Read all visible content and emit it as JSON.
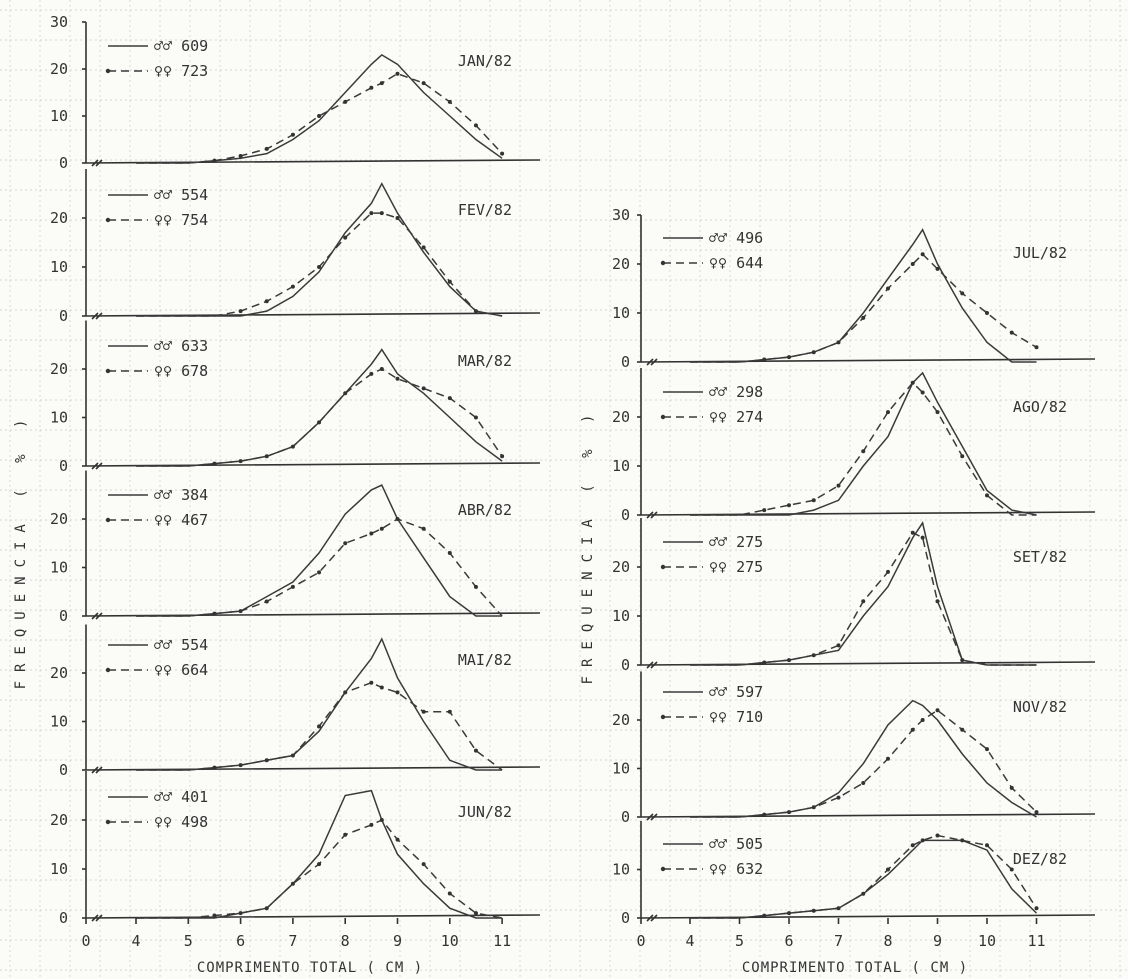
{
  "y_axis_label": "FREQUENCIA ( % )",
  "x_axis_label": "COMPRIMENTO TOTAL ( CM )",
  "chart_data": [
    {
      "type": "line",
      "title": "JAN/82",
      "x": [
        4,
        5,
        5.5,
        6,
        6.5,
        7,
        7.5,
        8,
        8.5,
        8.7,
        9,
        9.5,
        10,
        10.5,
        11
      ],
      "series": [
        {
          "name": "♂♂ 609",
          "y": [
            0,
            0,
            0.5,
            1,
            2,
            5,
            9,
            15,
            21,
            23,
            21,
            15,
            10,
            5,
            1
          ]
        },
        {
          "name": "♀♀ 723",
          "y": [
            0,
            0,
            0.5,
            1.5,
            3,
            6,
            10,
            13,
            16,
            17,
            19,
            17,
            13,
            8,
            2
          ]
        }
      ],
      "ylim": [
        0,
        30
      ],
      "yticks": [
        0,
        10,
        20,
        30
      ],
      "xlim": [
        0,
        12
      ]
    },
    {
      "type": "line",
      "title": "FEV/82",
      "x": [
        4,
        5,
        5.5,
        6,
        6.5,
        7,
        7.5,
        8,
        8.5,
        8.7,
        9,
        9.5,
        10,
        10.5,
        11
      ],
      "series": [
        {
          "name": "♂♂ 554",
          "y": [
            0,
            0,
            0,
            0,
            1,
            4,
            9,
            17,
            23,
            27,
            21,
            13,
            6,
            1,
            0
          ]
        },
        {
          "name": "♀♀ 754",
          "y": [
            0,
            0,
            0,
            1,
            3,
            6,
            10,
            16,
            21,
            21,
            20,
            14,
            7,
            1,
            0
          ]
        }
      ],
      "ylim": [
        0,
        30
      ],
      "yticks": [
        0,
        10,
        20
      ],
      "xlim": [
        0,
        12
      ]
    },
    {
      "type": "line",
      "title": "MAR/82",
      "x": [
        4,
        5,
        5.5,
        6,
        6.5,
        7,
        7.5,
        8,
        8.5,
        8.7,
        9,
        9.5,
        10,
        10.5,
        11
      ],
      "series": [
        {
          "name": "♂♂ 633",
          "y": [
            0,
            0,
            0.5,
            1,
            2,
            4,
            9,
            15,
            21,
            24,
            19,
            15,
            10,
            5,
            1
          ]
        },
        {
          "name": "♀♀ 678",
          "y": [
            0,
            0,
            0.5,
            1,
            2,
            4,
            9,
            15,
            19,
            20,
            18,
            16,
            14,
            10,
            2
          ]
        }
      ],
      "ylim": [
        0,
        30
      ],
      "yticks": [
        0,
        10,
        20
      ],
      "xlim": [
        0,
        12
      ]
    },
    {
      "type": "line",
      "title": "ABR/82",
      "x": [
        4,
        5,
        5.5,
        6,
        6.5,
        7,
        7.5,
        8,
        8.5,
        8.7,
        9,
        9.5,
        10,
        10.5,
        11
      ],
      "series": [
        {
          "name": "♂♂ 384",
          "y": [
            0,
            0,
            0.5,
            1,
            4,
            7,
            13,
            21,
            26,
            27,
            20,
            12,
            4,
            0,
            0
          ]
        },
        {
          "name": "♀♀ 467",
          "y": [
            0,
            0,
            0.5,
            1,
            3,
            6,
            9,
            15,
            17,
            18,
            20,
            18,
            13,
            6,
            0
          ]
        }
      ],
      "ylim": [
        0,
        30
      ],
      "yticks": [
        0,
        10,
        20
      ],
      "xlim": [
        0,
        12
      ]
    },
    {
      "type": "line",
      "title": "MAI/82",
      "x": [
        4,
        5,
        5.5,
        6,
        6.5,
        7,
        7.5,
        8,
        8.5,
        8.7,
        9,
        9.5,
        10,
        10.5,
        11
      ],
      "series": [
        {
          "name": "♂♂ 554",
          "y": [
            0,
            0,
            0.5,
            1,
            2,
            3,
            8,
            16,
            23,
            27,
            19,
            10,
            2,
            0,
            0
          ]
        },
        {
          "name": "♀♀ 664",
          "y": [
            0,
            0,
            0.5,
            1,
            2,
            3,
            9,
            16,
            18,
            17,
            16,
            12,
            12,
            4,
            0
          ]
        }
      ],
      "ylim": [
        0,
        30
      ],
      "yticks": [
        0,
        10,
        20
      ],
      "xlim": [
        0,
        12
      ]
    },
    {
      "type": "line",
      "title": "JUN/82",
      "x": [
        4,
        5,
        5.5,
        6,
        6.5,
        7,
        7.5,
        8,
        8.5,
        8.7,
        9,
        9.5,
        10,
        10.5,
        11
      ],
      "series": [
        {
          "name": "♂♂ 401",
          "y": [
            0,
            0,
            0,
            1,
            2,
            7,
            13,
            25,
            26,
            20,
            13,
            7,
            2,
            0,
            0
          ]
        },
        {
          "name": "♀♀ 498",
          "y": [
            0,
            0,
            0.5,
            1,
            2,
            7,
            11,
            17,
            19,
            20,
            16,
            11,
            5,
            1,
            0
          ]
        }
      ],
      "ylim": [
        0,
        30
      ],
      "yticks": [
        0,
        10,
        20
      ],
      "xlim": [
        0,
        12
      ]
    },
    {
      "type": "line",
      "title": "JUL/82",
      "x": [
        4,
        5,
        5.5,
        6,
        6.5,
        7,
        7.5,
        8,
        8.5,
        8.7,
        9,
        9.5,
        10,
        10.5,
        11
      ],
      "series": [
        {
          "name": "♂♂ 496",
          "y": [
            0,
            0,
            0.5,
            1,
            2,
            4,
            10,
            17,
            24,
            27,
            20,
            11,
            4,
            0,
            0
          ]
        },
        {
          "name": "♀♀ 644",
          "y": [
            0,
            0,
            0.5,
            1,
            2,
            4,
            9,
            15,
            20,
            22,
            19,
            14,
            10,
            6,
            3
          ]
        }
      ],
      "ylim": [
        0,
        30
      ],
      "yticks": [
        0,
        10,
        20,
        30
      ],
      "xlim": [
        0,
        12
      ]
    },
    {
      "type": "line",
      "title": "AGO/82",
      "x": [
        4,
        5,
        5.5,
        6,
        6.5,
        7,
        7.5,
        8,
        8.5,
        8.7,
        9,
        9.5,
        10,
        10.5,
        11
      ],
      "series": [
        {
          "name": "♂♂ 298",
          "y": [
            0,
            0,
            0,
            0,
            1,
            3,
            10,
            16,
            27,
            29,
            23,
            14,
            5,
            1,
            0
          ]
        },
        {
          "name": "♀♀ 274",
          "y": [
            0,
            0,
            1,
            2,
            3,
            6,
            13,
            21,
            27,
            25,
            21,
            12,
            4,
            0,
            0
          ]
        }
      ],
      "ylim": [
        0,
        30
      ],
      "yticks": [
        0,
        10,
        20
      ],
      "xlim": [
        0,
        12
      ]
    },
    {
      "type": "line",
      "title": "SET/82",
      "x": [
        4,
        5,
        5.5,
        6,
        6.5,
        7,
        7.5,
        8,
        8.5,
        8.7,
        9,
        9.5,
        10,
        10.5,
        11
      ],
      "series": [
        {
          "name": "♂♂ 275",
          "y": [
            0,
            0,
            0.5,
            1,
            2,
            3,
            10,
            16,
            26,
            29,
            16,
            1,
            0,
            0,
            0
          ]
        },
        {
          "name": "♀♀ 275",
          "y": [
            0,
            0,
            0.5,
            1,
            2,
            4,
            13,
            19,
            27,
            26,
            13,
            1,
            0,
            0,
            0
          ]
        }
      ],
      "ylim": [
        0,
        30
      ],
      "yticks": [
        0,
        10,
        20
      ],
      "xlim": [
        0,
        12
      ]
    },
    {
      "type": "line",
      "title": "NOV/82",
      "x": [
        4,
        5,
        5.5,
        6,
        6.5,
        7,
        7.5,
        8,
        8.5,
        8.7,
        9,
        9.5,
        10,
        10.5,
        11
      ],
      "series": [
        {
          "name": "♂♂ 597",
          "y": [
            0,
            0,
            0.5,
            1,
            2,
            5,
            11,
            19,
            24,
            23,
            20,
            13,
            7,
            3,
            0
          ]
        },
        {
          "name": "♀♀ 710",
          "y": [
            0,
            0,
            0.5,
            1,
            2,
            4,
            7,
            12,
            18,
            20,
            22,
            18,
            14,
            6,
            1
          ]
        }
      ],
      "ylim": [
        0,
        30
      ],
      "yticks": [
        0,
        10,
        20
      ],
      "xlim": [
        0,
        12
      ]
    },
    {
      "type": "line",
      "title": "DEZ/82",
      "x": [
        4,
        5,
        5.5,
        6,
        6.5,
        7,
        7.5,
        8,
        8.5,
        8.7,
        9,
        9.5,
        10,
        10.5,
        11
      ],
      "series": [
        {
          "name": "♂♂ 505",
          "y": [
            0,
            0,
            0.5,
            1,
            1.5,
            2,
            5,
            9,
            14,
            16,
            16,
            16,
            14,
            6,
            1
          ]
        },
        {
          "name": "♀♀ 632",
          "y": [
            0,
            0,
            0.5,
            1,
            1.5,
            2,
            5,
            10,
            15,
            16,
            17,
            16,
            15,
            10,
            2
          ]
        }
      ],
      "ylim": [
        0,
        20
      ],
      "yticks": [
        0,
        10
      ],
      "xlim": [
        0,
        12
      ]
    }
  ],
  "x_ticks": [
    "0",
    "4",
    "5",
    "6",
    "7",
    "8",
    "9",
    "10",
    "11"
  ],
  "x_tick_values": [
    0,
    4,
    5,
    6,
    7,
    8,
    9,
    10,
    11
  ]
}
